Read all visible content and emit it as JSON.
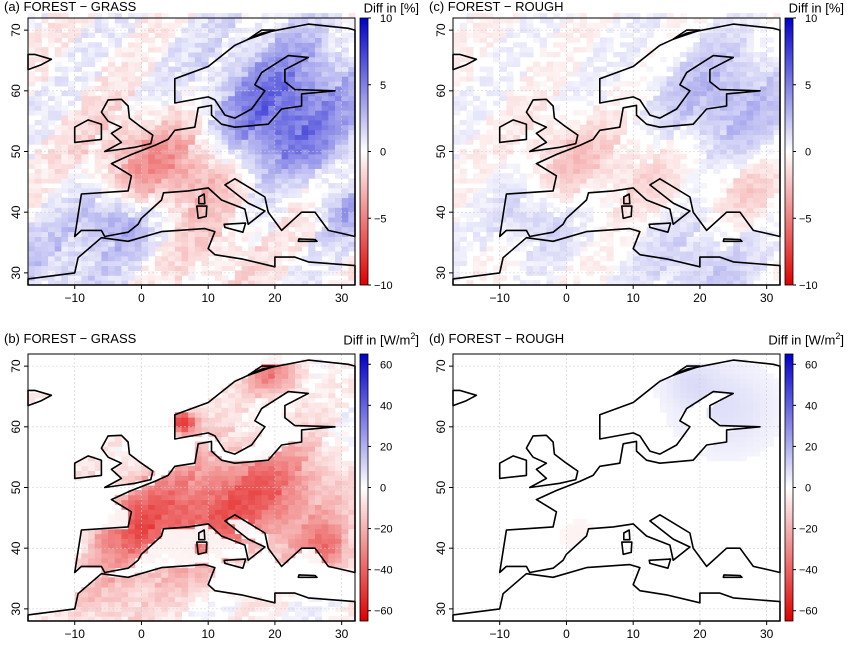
{
  "figure": {
    "x_ticks": [
      "−10",
      "0",
      "10",
      "20",
      "30"
    ],
    "y_ticks": [
      "30",
      "40",
      "50",
      "60",
      "70"
    ]
  },
  "panels": [
    {
      "id": "a",
      "title": "(a) FOREST − GRASS",
      "unit_prefix": "Diff in [%]",
      "unit_sup": "",
      "unit_suffix": "",
      "colorbar_ticks": [
        "10",
        "5",
        "0",
        "−5",
        "−10"
      ],
      "colorbar_range": [
        -10,
        10
      ],
      "pattern": "percent_grass"
    },
    {
      "id": "c",
      "title": "(c) FOREST − ROUGH",
      "unit_prefix": "Diff in [%]",
      "unit_sup": "",
      "unit_suffix": "",
      "colorbar_ticks": [
        "10",
        "5",
        "0",
        "−5",
        "−10"
      ],
      "colorbar_range": [
        -10,
        10
      ],
      "pattern": "percent_rough"
    },
    {
      "id": "b",
      "title": "(b) FOREST − GRASS",
      "unit_prefix": "Diff in [W/m",
      "unit_sup": "2",
      "unit_suffix": "]",
      "colorbar_ticks": [
        "60",
        "40",
        "20",
        "0",
        "−20",
        "−40",
        "−60"
      ],
      "colorbar_range": [
        -65,
        65
      ],
      "pattern": "flux_grass"
    },
    {
      "id": "d",
      "title": "(d) FOREST − ROUGH",
      "unit_prefix": "Diff in [W/m",
      "unit_sup": "2",
      "unit_suffix": "]",
      "colorbar_ticks": [
        "60",
        "40",
        "20",
        "0",
        "−20",
        "−40",
        "−60"
      ],
      "colorbar_range": [
        -65,
        65
      ],
      "pattern": "flux_rough"
    }
  ],
  "colors": {
    "positive_high": "#0000cc",
    "negative_high": "#e00000",
    "neutral": "#ffffff",
    "coastline": "#000000",
    "grid": "#cccccc"
  }
}
